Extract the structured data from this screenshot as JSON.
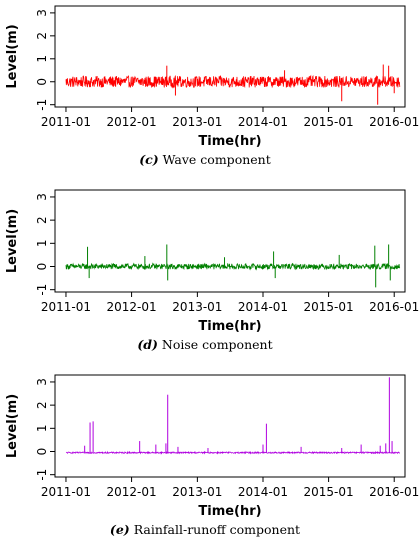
{
  "chart_data": [
    {
      "type": "line",
      "caption_letter": "(c)",
      "caption_text": " Wave component",
      "xlabel": "Time(hr)",
      "ylabel": "Level(m)",
      "xlim": [
        "2010-11-01",
        "2016-03-01"
      ],
      "ylim": [
        -1.1,
        3.3
      ],
      "x_ticks": [
        "2011-01",
        "2012-01",
        "2013-01",
        "2014-01",
        "2015-01",
        "2016-01"
      ],
      "y_ticks": [
        -1,
        0,
        1,
        2,
        3
      ],
      "series": [
        {
          "color": "#ff0000",
          "x_start": "2011-01-01",
          "x_end": "2016-02-01",
          "baseline": 0,
          "amplitude": 0.25,
          "spikes": [
            {
              "x": "2012-07-15",
              "y": 0.7
            },
            {
              "x": "2012-09-01",
              "y": -0.6
            },
            {
              "x": "2014-05-01",
              "y": 0.5
            },
            {
              "x": "2015-03-15",
              "y": -0.85
            },
            {
              "x": "2015-10-01",
              "y": -1.0
            },
            {
              "x": "2015-11-01",
              "y": 0.75
            },
            {
              "x": "2015-12-01",
              "y": 0.7
            },
            {
              "x": "2016-01-01",
              "y": -0.5
            }
          ]
        }
      ]
    },
    {
      "type": "line",
      "caption_letter": "(d)",
      "caption_text": " Noise component",
      "xlabel": "Time(hr)",
      "ylabel": "Level(m)",
      "xlim": [
        "2010-11-01",
        "2016-03-01"
      ],
      "ylim": [
        -1.1,
        3.3
      ],
      "x_ticks": [
        "2011-01",
        "2012-01",
        "2013-01",
        "2014-01",
        "2015-01",
        "2016-01"
      ],
      "y_ticks": [
        -1,
        0,
        1,
        2,
        3
      ],
      "series": [
        {
          "color": "#008000",
          "x_start": "2011-01-01",
          "x_end": "2016-02-01",
          "baseline": 0,
          "amplitude": 0.12,
          "spikes": [
            {
              "x": "2011-05-01",
              "y": 0.85
            },
            {
              "x": "2011-05-10",
              "y": -0.5
            },
            {
              "x": "2012-03-15",
              "y": 0.45
            },
            {
              "x": "2012-07-15",
              "y": 0.95
            },
            {
              "x": "2012-07-20",
              "y": -0.6
            },
            {
              "x": "2013-06-01",
              "y": 0.4
            },
            {
              "x": "2014-03-01",
              "y": 0.65
            },
            {
              "x": "2014-03-10",
              "y": -0.5
            },
            {
              "x": "2015-03-01",
              "y": 0.5
            },
            {
              "x": "2015-09-15",
              "y": 0.9
            },
            {
              "x": "2015-09-20",
              "y": -0.9
            },
            {
              "x": "2015-12-01",
              "y": 0.95
            },
            {
              "x": "2015-12-10",
              "y": -0.6
            }
          ]
        }
      ]
    },
    {
      "type": "line",
      "caption_letter": "(e)",
      "caption_text": " Rainfall-runoff component",
      "xlabel": "Time(hr)",
      "ylabel": "Level(m)",
      "xlim": [
        "2010-11-01",
        "2016-03-01"
      ],
      "ylim": [
        -1.1,
        3.3
      ],
      "x_ticks": [
        "2011-01",
        "2012-01",
        "2013-01",
        "2014-01",
        "2015-01",
        "2016-01"
      ],
      "y_ticks": [
        -1,
        0,
        1,
        2,
        3
      ],
      "series": [
        {
          "color": "#b000e0",
          "x_start": "2011-01-01",
          "x_end": "2016-02-01",
          "baseline": -0.05,
          "amplitude": 0.03,
          "spikes": [
            {
              "x": "2011-04-15",
              "y": 0.25
            },
            {
              "x": "2011-05-15",
              "y": 1.25
            },
            {
              "x": "2011-06-01",
              "y": 1.3
            },
            {
              "x": "2012-02-15",
              "y": 0.45
            },
            {
              "x": "2012-05-15",
              "y": 0.3
            },
            {
              "x": "2012-07-10",
              "y": 0.35
            },
            {
              "x": "2012-07-20",
              "y": 2.45
            },
            {
              "x": "2012-09-15",
              "y": 0.2
            },
            {
              "x": "2013-03-01",
              "y": 0.15
            },
            {
              "x": "2014-01-01",
              "y": 0.3
            },
            {
              "x": "2014-01-20",
              "y": 1.2
            },
            {
              "x": "2014-08-01",
              "y": 0.2
            },
            {
              "x": "2015-03-15",
              "y": 0.15
            },
            {
              "x": "2015-07-01",
              "y": 0.3
            },
            {
              "x": "2015-10-15",
              "y": 0.25
            },
            {
              "x": "2015-11-15",
              "y": 0.35
            },
            {
              "x": "2015-12-05",
              "y": 3.2
            },
            {
              "x": "2015-12-20",
              "y": 0.45
            }
          ]
        }
      ]
    }
  ]
}
